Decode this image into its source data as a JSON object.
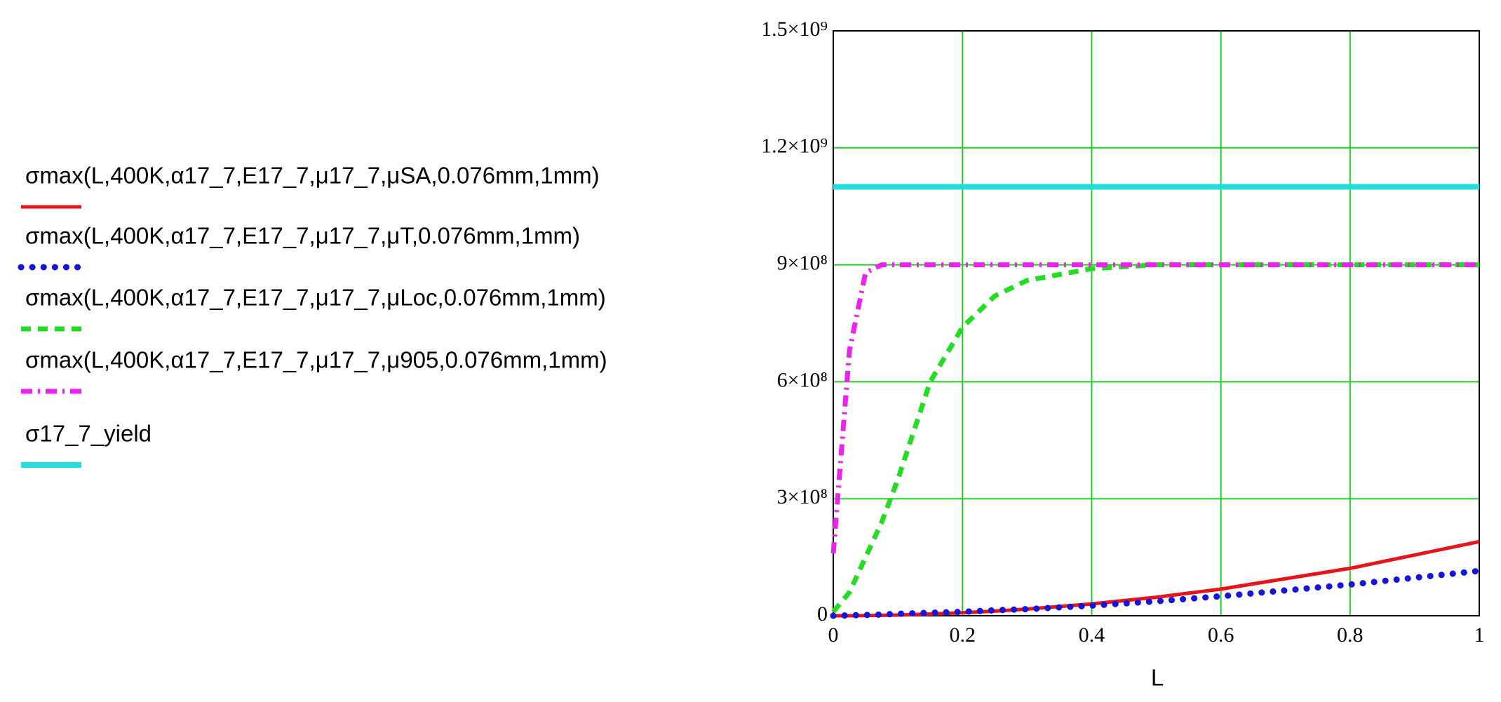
{
  "chart_data": {
    "type": "line",
    "x": [
      0,
      0.025,
      0.05,
      0.075,
      0.1,
      0.15,
      0.2,
      0.25,
      0.3,
      0.4,
      0.5,
      0.6,
      0.8,
      1.0
    ],
    "series": [
      {
        "name": "σmax(L,400K,α17_7,E17_7,μ17_7,μSA,0.076mm,1mm)",
        "color": "#e8141c",
        "dash": "solid",
        "values": [
          0,
          100000,
          500000,
          1100000,
          1900000,
          4300000,
          7600000,
          11900000,
          17100000,
          30400000,
          47500000,
          68400000,
          121600000,
          190000000
        ]
      },
      {
        "name": "σmax(L,400K,α17_7,E17_7,μ17_7,μT,0.076mm,1mm)",
        "color": "#1414dc",
        "dash": "dotted",
        "values": [
          0,
          1000000,
          2000000,
          3000000,
          5000000,
          7500000,
          10000000,
          14000000,
          17000000,
          26000000,
          37000000,
          50000000,
          80000000,
          115000000
        ]
      },
      {
        "name": "σmax(L,400K,α17_7,E17_7,μ17_7,μLoc,0.076mm,1mm)",
        "color": "#22dd22",
        "dash": "dashed",
        "values": [
          10000000,
          60000000,
          150000000,
          240000000,
          350000000,
          600000000,
          740000000,
          820000000,
          860000000,
          890000000,
          900000000,
          900000000,
          900000000,
          900000000
        ]
      },
      {
        "name": "σmax(L,400K,α17_7,E17_7,μ17_7,μ905,0.076mm,1mm)",
        "color": "#ee22ee",
        "dash": "dashdot",
        "values": [
          160000000,
          680000000,
          880000000,
          900000000,
          900000000,
          900000000,
          900000000,
          900000000,
          900000000,
          900000000,
          900000000,
          900000000,
          900000000,
          900000000
        ]
      },
      {
        "name": "σ17_7_yield",
        "color": "#22dddd",
        "dash": "solid",
        "values": [
          1100000000,
          1100000000,
          1100000000,
          1100000000,
          1100000000,
          1100000000,
          1100000000,
          1100000000,
          1100000000,
          1100000000,
          1100000000,
          1100000000,
          1100000000,
          1100000000
        ]
      }
    ],
    "x_label": "L",
    "xlim": [
      0,
      1
    ],
    "xticks": [
      0,
      0.2,
      0.4,
      0.6,
      0.8,
      1
    ],
    "ylim": [
      0,
      1500000000
    ],
    "yticks": [
      0,
      {
        "value": 300000000,
        "label": "3×10⁸"
      },
      {
        "value": 600000000,
        "label": "6×10⁸"
      },
      {
        "value": 900000000,
        "label": "9×10⁸"
      },
      {
        "value": 1200000000,
        "label": "1.2×10⁹"
      },
      {
        "value": 1500000000,
        "label": "1.5×10⁹"
      }
    ],
    "grid": true,
    "grid_color": "#22cc22",
    "legend": "left"
  }
}
